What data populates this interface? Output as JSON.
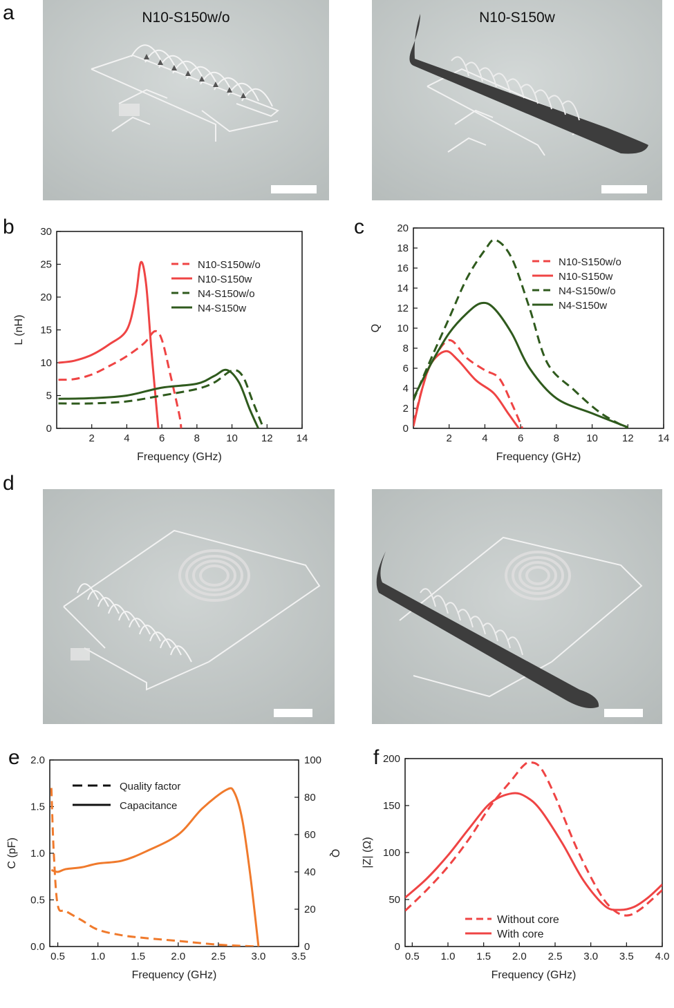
{
  "panels": {
    "a": {
      "letter": "a",
      "left_title": "N10-S150w/o",
      "right_title": "N10-S150w"
    },
    "d": {
      "letter": "d"
    }
  },
  "colors": {
    "red": "#ef4444",
    "dark_green": "#2f5a1d",
    "orange": "#f07a2c",
    "sem_bg": "#c8cdcc"
  },
  "chart_data": [
    {
      "id": "b",
      "letter": "b",
      "type": "line",
      "xlabel": "Frequency (GHz)",
      "ylabel": "L (nH)",
      "xlim": [
        0,
        14
      ],
      "ylim": [
        0,
        30
      ],
      "xticks": [
        2,
        4,
        6,
        8,
        10,
        12,
        14
      ],
      "yticks": [
        0,
        5,
        10,
        15,
        20,
        25,
        30
      ],
      "legend": "top-right",
      "series": [
        {
          "name": "N10-S150w/o",
          "color": "#ef4444",
          "dash": true,
          "x": [
            0.1,
            1,
            2,
            3,
            4,
            5,
            5.6,
            6.0,
            6.5,
            7.0,
            7.1
          ],
          "y": [
            7.4,
            7.5,
            8.2,
            9.5,
            11.0,
            13.0,
            14.8,
            13.5,
            8.0,
            2.0,
            0
          ]
        },
        {
          "name": "N10-S150w",
          "color": "#ef4444",
          "dash": false,
          "x": [
            0.1,
            1,
            2,
            3,
            4,
            4.5,
            4.8,
            5.1,
            5.4,
            5.7,
            5.8
          ],
          "y": [
            10.0,
            10.3,
            11.2,
            12.8,
            15.0,
            20.0,
            25.3,
            22.0,
            12.0,
            3.0,
            0
          ]
        },
        {
          "name": "N4-S150w/o",
          "color": "#2f5a1d",
          "dash": true,
          "x": [
            0.1,
            2,
            4,
            6,
            8,
            9,
            10,
            10.6,
            11.2,
            11.8
          ],
          "y": [
            3.8,
            3.8,
            4.1,
            5.0,
            6.0,
            7.0,
            8.8,
            8.0,
            4.0,
            0
          ]
        },
        {
          "name": "N4-S150w",
          "color": "#2f5a1d",
          "dash": false,
          "x": [
            0.1,
            2,
            4,
            6,
            8,
            9,
            9.7,
            10.4,
            11.0,
            11.5
          ],
          "y": [
            4.5,
            4.6,
            5.0,
            6.2,
            6.8,
            8.0,
            8.9,
            7.0,
            3.0,
            0
          ]
        }
      ]
    },
    {
      "id": "c",
      "letter": "c",
      "type": "line",
      "xlabel": "Frequency (GHz)",
      "ylabel": "Q",
      "xlim": [
        0,
        14
      ],
      "ylim": [
        0,
        20
      ],
      "xticks": [
        2,
        4,
        6,
        8,
        10,
        12,
        14
      ],
      "yticks": [
        0,
        2,
        4,
        6,
        8,
        10,
        12,
        14,
        16,
        18,
        20
      ],
      "legend": "top-right",
      "series": [
        {
          "name": "N10-S150w/o",
          "color": "#ef4444",
          "dash": true,
          "x": [
            0,
            0.5,
            1,
            2,
            3,
            4,
            4.8,
            5.5,
            6.1
          ],
          "y": [
            0.5,
            4.0,
            6.5,
            8.8,
            7.0,
            5.8,
            5.0,
            2.5,
            0
          ]
        },
        {
          "name": "N10-S150w",
          "color": "#ef4444",
          "dash": false,
          "x": [
            0,
            0.5,
            1,
            1.8,
            2.5,
            3.5,
            4.5,
            5.3,
            5.9
          ],
          "y": [
            0.2,
            4.0,
            6.5,
            7.7,
            6.8,
            4.8,
            3.5,
            1.5,
            0
          ]
        },
        {
          "name": "N4-S150w/o",
          "color": "#2f5a1d",
          "dash": true,
          "x": [
            0,
            1,
            2,
            3,
            4,
            4.6,
            5.5,
            6.5,
            7.5,
            9,
            10.5,
            12
          ],
          "y": [
            2.8,
            7.0,
            11.0,
            15.0,
            17.8,
            18.8,
            17.0,
            12.0,
            6.5,
            3.8,
            1.5,
            0
          ]
        },
        {
          "name": "N4-S150w",
          "color": "#2f5a1d",
          "dash": false,
          "x": [
            0,
            1,
            2,
            3,
            3.8,
            4.5,
            5.5,
            6.5,
            8,
            10,
            12
          ],
          "y": [
            3.0,
            6.5,
            9.5,
            11.5,
            12.5,
            12.0,
            9.5,
            6.0,
            3.0,
            1.5,
            0.1
          ]
        }
      ]
    },
    {
      "id": "e",
      "letter": "e",
      "type": "line",
      "xlabel": "Frequency (GHz)",
      "ylabel": "C (pF)",
      "y2label": "Q",
      "xlim": [
        0.4,
        3.5
      ],
      "ylim": [
        0,
        2.0
      ],
      "y2lim": [
        0,
        100
      ],
      "xticks": [
        0.5,
        1.0,
        1.5,
        2.0,
        2.5,
        3.0,
        3.5
      ],
      "yticks": [
        0.0,
        0.5,
        1.0,
        1.5,
        2.0
      ],
      "y2ticks": [
        0,
        20,
        40,
        60,
        80,
        100
      ],
      "legend": "top-left",
      "legend_entries": [
        "Quality factor",
        "Capacitance"
      ],
      "series": [
        {
          "name": "Capacitance",
          "color": "#f07a2c",
          "dash": false,
          "axis": "left",
          "x": [
            0.42,
            0.5,
            0.6,
            0.8,
            1.0,
            1.3,
            1.6,
            2.0,
            2.3,
            2.6,
            2.7,
            2.8,
            2.9,
            3.0
          ],
          "y": [
            0.82,
            0.8,
            0.83,
            0.85,
            0.89,
            0.92,
            1.02,
            1.2,
            1.48,
            1.68,
            1.65,
            1.35,
            0.75,
            0
          ]
        },
        {
          "name": "Quality factor",
          "color": "#f07a2c",
          "dash": true,
          "axis": "right",
          "x": [
            0.42,
            0.45,
            0.5,
            0.6,
            0.8,
            1.0,
            1.3,
            1.6,
            2.0,
            2.5,
            3.0
          ],
          "y": [
            85,
            50,
            22,
            19,
            14,
            9,
            6,
            4.5,
            3,
            1,
            0
          ]
        }
      ]
    },
    {
      "id": "f",
      "letter": "f",
      "type": "line",
      "xlabel": "Frequency (GHz)",
      "ylabel": "|Z| (Ω)",
      "xlim": [
        0.4,
        4.0
      ],
      "ylim": [
        0,
        200
      ],
      "xticks": [
        0.5,
        1.0,
        1.5,
        2.0,
        2.5,
        3.0,
        3.5,
        4.0
      ],
      "yticks": [
        0,
        50,
        100,
        150,
        200
      ],
      "legend": "bottom-center",
      "series": [
        {
          "name": "Without core",
          "color": "#ef4444",
          "dash": true,
          "x": [
            0.4,
            0.7,
            1.0,
            1.3,
            1.6,
            1.9,
            2.05,
            2.15,
            2.3,
            2.5,
            2.8,
            3.1,
            3.3,
            3.5,
            3.7,
            4.0
          ],
          "y": [
            38,
            60,
            85,
            115,
            150,
            178,
            192,
            196,
            190,
            160,
            105,
            60,
            40,
            33,
            40,
            60
          ]
        },
        {
          "name": "With core",
          "color": "#ef4444",
          "dash": false,
          "x": [
            0.4,
            0.7,
            1.0,
            1.3,
            1.6,
            1.9,
            2.1,
            2.3,
            2.6,
            2.9,
            3.2,
            3.4,
            3.6,
            3.8,
            4.0
          ],
          "y": [
            52,
            72,
            97,
            126,
            153,
            163,
            159,
            145,
            110,
            70,
            43,
            39,
            42,
            52,
            66
          ]
        }
      ]
    }
  ]
}
